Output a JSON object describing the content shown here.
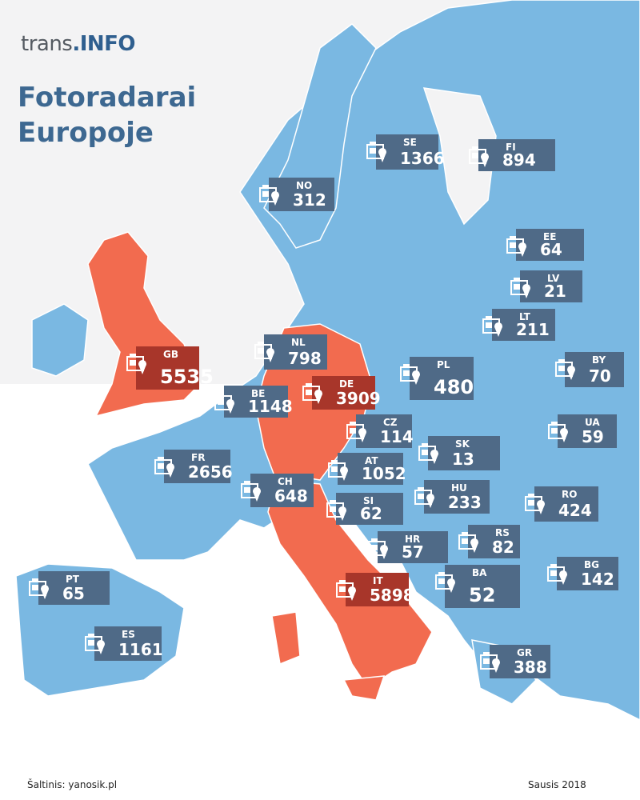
{
  "logo": {
    "prefix": "trans",
    "suffix": ".INFO"
  },
  "title": "Fotoradarai Europoje",
  "countries": [
    {
      "code": "SE",
      "value": 1366,
      "color": "#4f6a87"
    },
    {
      "code": "FI",
      "value": 894,
      "color": "#4f6a87"
    },
    {
      "code": "NO",
      "value": 312,
      "color": "#4f6a87"
    },
    {
      "code": "EE",
      "value": 64,
      "color": "#4f6a87"
    },
    {
      "code": "LV",
      "value": 21,
      "color": "#4f6a87"
    },
    {
      "code": "LT",
      "value": 211,
      "color": "#4f6a87"
    },
    {
      "code": "GB",
      "value": 5535,
      "color": "#a8362a"
    },
    {
      "code": "NL",
      "value": 798,
      "color": "#4f6a87"
    },
    {
      "code": "PL",
      "value": 480,
      "color": "#4f6a87"
    },
    {
      "code": "BY",
      "value": 70,
      "color": "#4f6a87"
    },
    {
      "code": "DE",
      "value": 3909,
      "color": "#a8362a"
    },
    {
      "code": "BE",
      "value": 1148,
      "color": "#4f6a87"
    },
    {
      "code": "CZ",
      "value": 114,
      "color": "#4f6a87"
    },
    {
      "code": "UA",
      "value": 59,
      "color": "#4f6a87"
    },
    {
      "code": "SK",
      "value": 13,
      "color": "#4f6a87"
    },
    {
      "code": "FR",
      "value": 2656,
      "color": "#4f6a87"
    },
    {
      "code": "AT",
      "value": 1052,
      "color": "#4f6a87"
    },
    {
      "code": "CH",
      "value": 648,
      "color": "#4f6a87"
    },
    {
      "code": "HU",
      "value": 233,
      "color": "#4f6a87"
    },
    {
      "code": "RO",
      "value": 424,
      "color": "#4f6a87"
    },
    {
      "code": "SI",
      "value": 62,
      "color": "#4f6a87"
    },
    {
      "code": "HR",
      "value": 57,
      "color": "#4f6a87"
    },
    {
      "code": "RS",
      "value": 82,
      "color": "#4f6a87"
    },
    {
      "code": "PT",
      "value": 65,
      "color": "#4f6a87"
    },
    {
      "code": "IT",
      "value": 5898,
      "color": "#a8362a"
    },
    {
      "code": "BA",
      "value": 52,
      "color": "#4f6a87"
    },
    {
      "code": "BG",
      "value": 142,
      "color": "#4f6a87"
    },
    {
      "code": "ES",
      "value": 1161,
      "color": "#4f6a87"
    },
    {
      "code": "GR",
      "value": 388,
      "color": "#4f6a87"
    }
  ],
  "source": "Šaltinis: yanosik.pl",
  "date": "Sausis 2018"
}
